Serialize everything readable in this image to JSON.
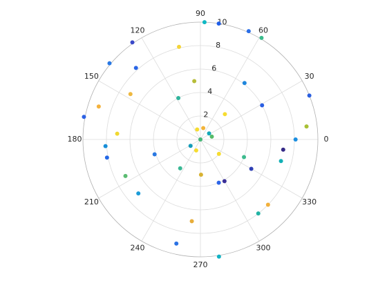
{
  "chart_data": {
    "type": "scatter",
    "polar": true,
    "theta": [
      88,
      81,
      66,
      59,
      22,
      7,
      0,
      353,
      345,
      316,
      308,
      330,
      338,
      300,
      293,
      279,
      257,
      264,
      271,
      235,
      221,
      206,
      198,
      191,
      184,
      176,
      169,
      162,
      140,
      147,
      132,
      125,
      103,
      96,
      118,
      52,
      29,
      46,
      108,
      76,
      35,
      14,
      213,
      249,
      0,
      322
    ],
    "r": [
      10,
      10,
      10.1,
      10.1,
      10,
      9.1,
      8.1,
      7.1,
      7.1,
      8,
      8,
      5,
      4,
      4.1,
      4,
      10.1,
      9.1,
      7,
      3,
      3,
      7,
      7.1,
      4.1,
      8.1,
      8.1,
      7.1,
      10.1,
      9.1,
      10.1,
      7.1,
      8.2,
      10.1,
      8.1,
      5,
      4,
      6.1,
      6,
      3,
      0.9,
      1,
      0.9,
      1,
      1,
      1,
      0,
      2
    ],
    "colors": [
      "#0fb8c4",
      "#1f5ee8",
      "#2a6ee8",
      "#3bbb8c",
      "#2a5fe0",
      "#a8c034",
      "#1a8ee0",
      "#352a87",
      "#13b0b6",
      "#f2b03b",
      "#22b3a4",
      "#3040b5",
      "#3dbb8e",
      "#3a2f98",
      "#2d65e8",
      "#12b2c4",
      "#2b72e4",
      "#e8ad3a",
      "#d8b232",
      "#3ab895",
      "#1c9cd8",
      "#5bbc72",
      "#2a78e2",
      "#2468e6",
      "#178ed8",
      "#f0d830",
      "#2d62e4",
      "#f4b23c",
      "#2878e4",
      "#eeb840",
      "#2a66e6",
      "#3a48c8",
      "#f4d438",
      "#b7bd3a",
      "#30b49c",
      "#1f86dc",
      "#2a5ee2",
      "#f6dc30",
      "#f6dc30",
      "#f2b43a",
      "#14a8b8",
      "#56bb68",
      "#149cb8",
      "#f6dc30",
      "#46b878",
      "#f6dc30"
    ],
    "rlim": [
      0,
      10
    ],
    "rticks": [
      2,
      4,
      6,
      8,
      10
    ],
    "thetaticks": [
      0,
      30,
      60,
      90,
      120,
      150,
      180,
      210,
      240,
      270,
      300,
      330
    ],
    "grid": true
  }
}
